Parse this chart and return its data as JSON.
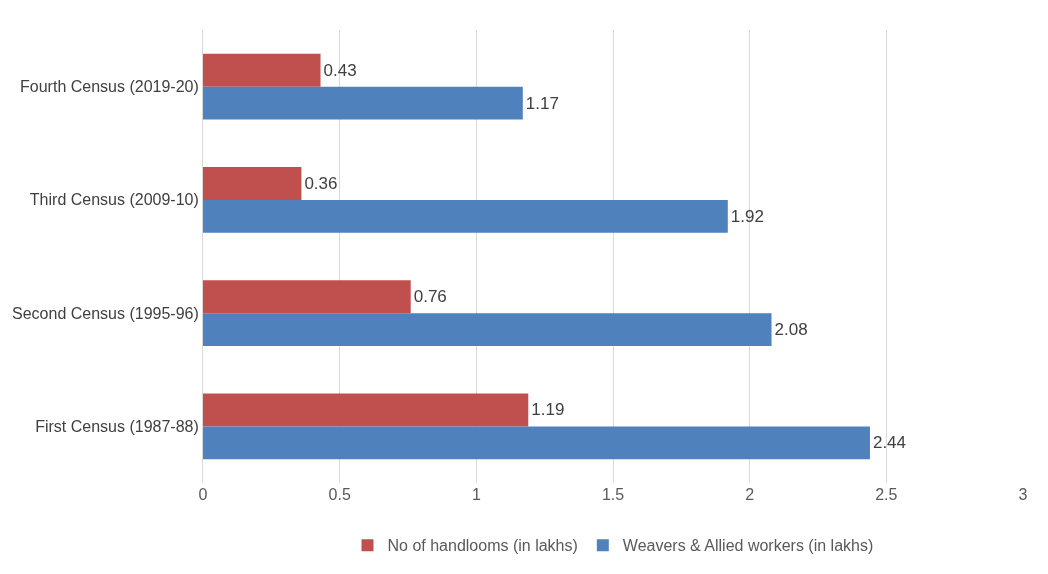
{
  "chart_data": {
    "type": "bar",
    "orientation": "horizontal",
    "categories": [
      "Fourth Census (2019-20)",
      "Third Census (2009-10)",
      "Second Census (1995-96)",
      "First Census (1987-88)"
    ],
    "series": [
      {
        "name": "No of handlooms (in lakhs)",
        "color": "#c0504d",
        "values": [
          0.43,
          0.36,
          0.76,
          1.19
        ]
      },
      {
        "name": "Weavers & Allied workers (in lakhs)",
        "color": "#4f81bd",
        "values": [
          1.17,
          1.92,
          2.08,
          2.44
        ]
      }
    ],
    "xlim": [
      0,
      3
    ],
    "xticks": [
      0,
      0.5,
      1,
      1.5,
      2,
      2.5,
      3
    ],
    "grid": "x",
    "legend": "bottom",
    "data_labels": true
  }
}
